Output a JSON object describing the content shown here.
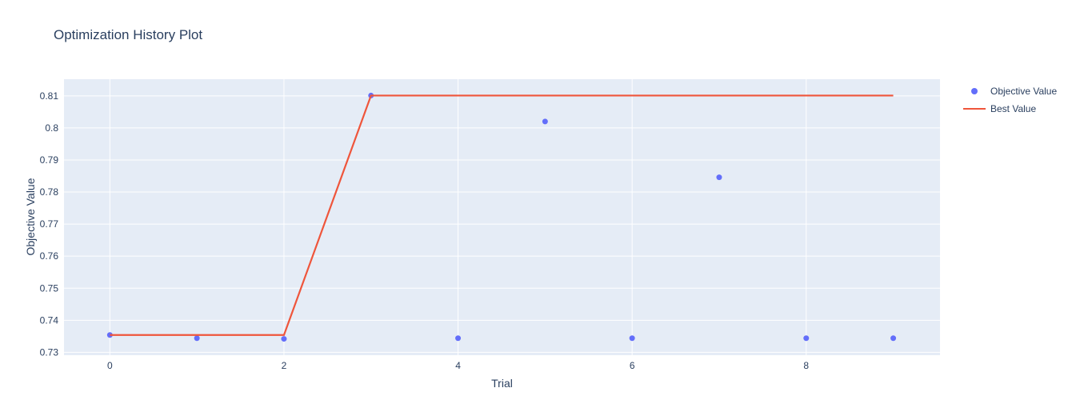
{
  "title": "Optimization History Plot",
  "chart_data": {
    "type": "scatter",
    "title": "Optimization History Plot",
    "xlabel": "Trial",
    "ylabel": "Objective Value",
    "xlim": [
      -0.527,
      9.537
    ],
    "ylim": [
      0.7291,
      0.8152
    ],
    "grid": true,
    "legend_position": "top-right",
    "plot_bg": "#E5ECF6",
    "grid_color": "#FFFFFF",
    "text_color": "#2a3f5f",
    "x": [
      0,
      1,
      2,
      3,
      4,
      5,
      6,
      7,
      8,
      9
    ],
    "series": [
      {
        "name": "Objective Value",
        "mode": "markers",
        "color": "#636EFA",
        "values": [
          0.7354,
          0.7344,
          0.7342,
          0.8101,
          0.7344,
          0.802,
          0.7344,
          0.7846,
          0.7344,
          0.7344
        ]
      },
      {
        "name": "Best Value",
        "mode": "line",
        "color": "#EF553B",
        "values": [
          0.7354,
          0.7354,
          0.7354,
          0.8101,
          0.8101,
          0.8101,
          0.8101,
          0.8101,
          0.8101,
          0.8101
        ]
      }
    ],
    "xticks": [
      {
        "v": 0,
        "label": "0"
      },
      {
        "v": 2,
        "label": "2"
      },
      {
        "v": 4,
        "label": "4"
      },
      {
        "v": 6,
        "label": "6"
      },
      {
        "v": 8,
        "label": "8"
      }
    ],
    "yticks": [
      {
        "v": 0.73,
        "label": "0.73"
      },
      {
        "v": 0.74,
        "label": "0.74"
      },
      {
        "v": 0.75,
        "label": "0.75"
      },
      {
        "v": 0.76,
        "label": "0.76"
      },
      {
        "v": 0.77,
        "label": "0.77"
      },
      {
        "v": 0.78,
        "label": "0.78"
      },
      {
        "v": 0.79,
        "label": "0.79"
      },
      {
        "v": 0.8,
        "label": "0.8"
      },
      {
        "v": 0.81,
        "label": "0.81"
      }
    ]
  }
}
